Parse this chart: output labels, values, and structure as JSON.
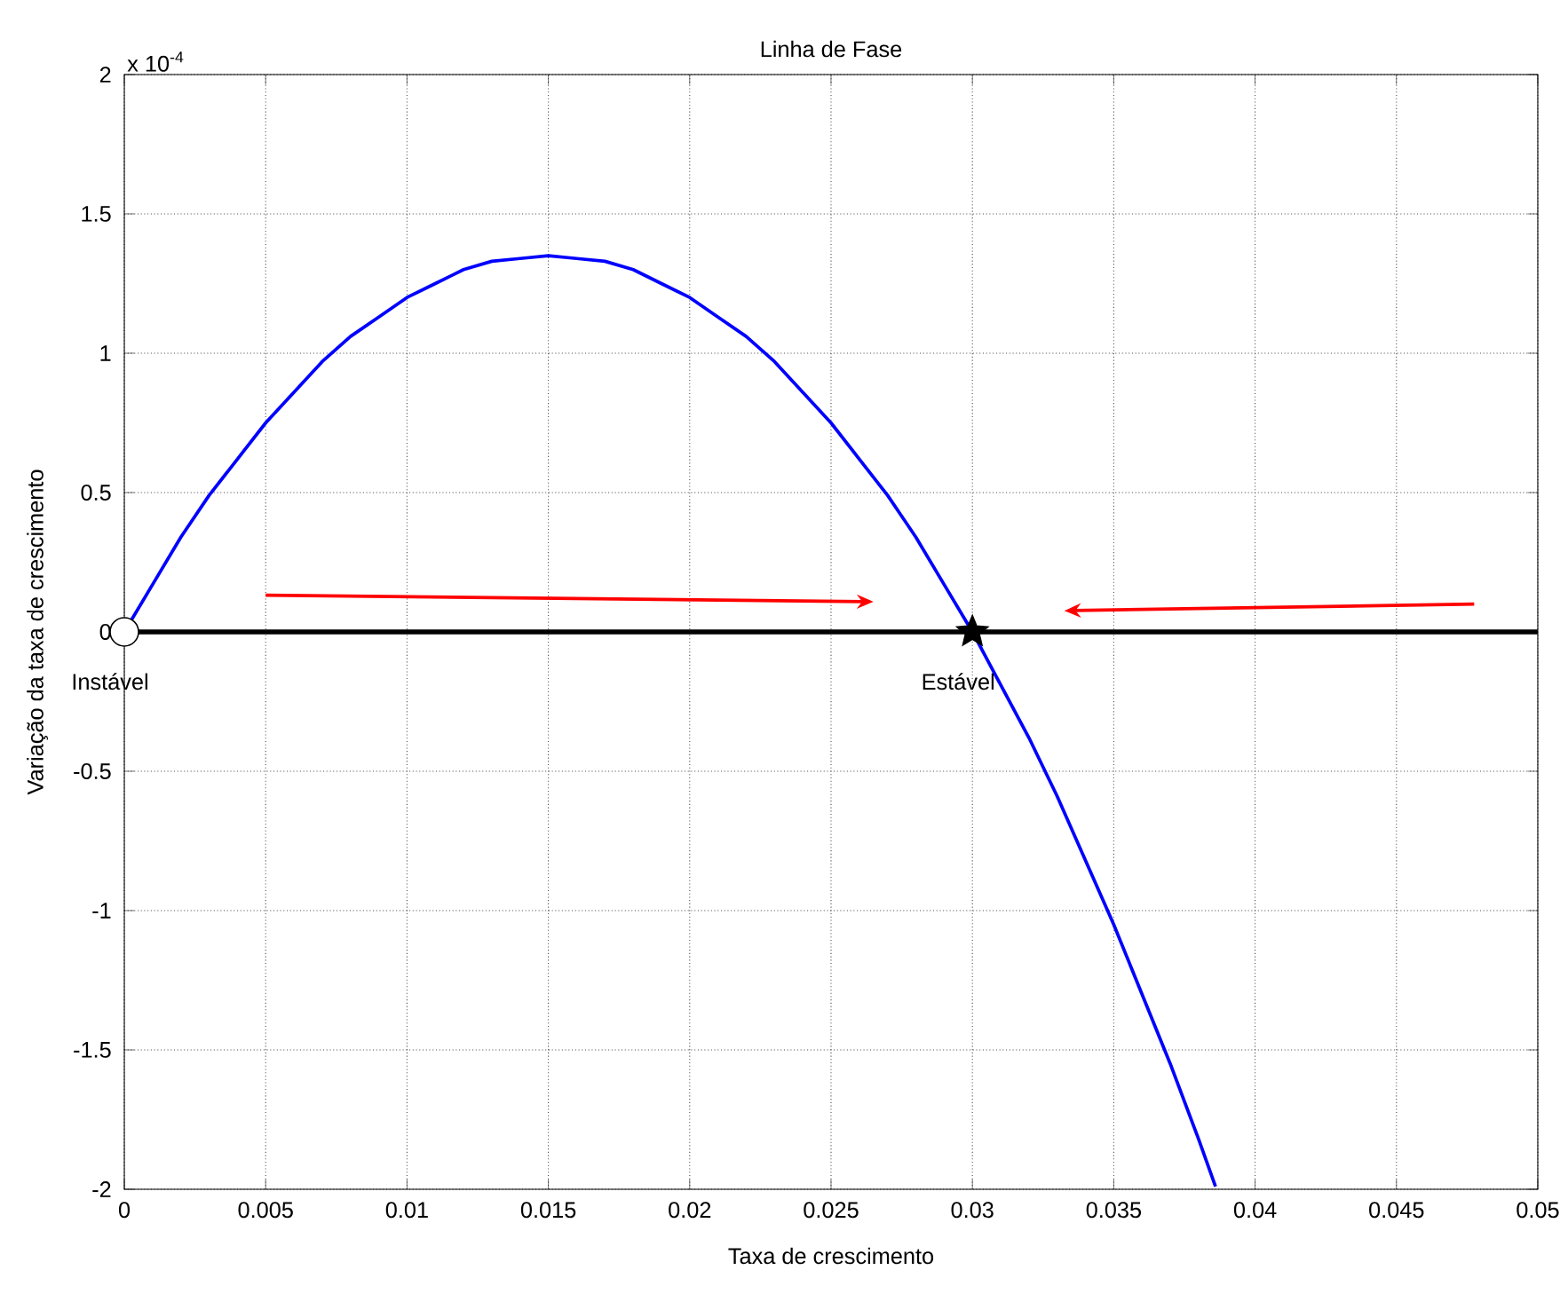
{
  "chart_data": {
    "type": "line",
    "title": "Linha de Fase",
    "xlabel": "Taxa de crescimento",
    "ylabel": "Variação da taxa de crescimento",
    "xlim": [
      0,
      0.05
    ],
    "ylim": [
      -2,
      2
    ],
    "xticks": [
      0,
      0.005,
      0.01,
      0.015,
      0.02,
      0.025,
      0.03,
      0.035,
      0.04,
      0.045,
      0.05
    ],
    "yticks": [
      -2,
      -1.5,
      -1,
      -0.5,
      0,
      0.5,
      1,
      1.5,
      2
    ],
    "grid": true,
    "series": [
      {
        "color": "#0000ff",
        "x": [
          0,
          0.001,
          0.002,
          0.003,
          0.004,
          0.005,
          0.006,
          0.007,
          0.008,
          0.009,
          0.01,
          0.011,
          0.012,
          0.013,
          0.014,
          0.015,
          0.016,
          0.017,
          0.018,
          0.019,
          0.02,
          0.021,
          0.022,
          0.023,
          0.024,
          0.025,
          0.026,
          0.027,
          0.028,
          0.029,
          0.03,
          0.031,
          0.032,
          0.033,
          0.034,
          0.035,
          0.036,
          0.037,
          0.038,
          0.0386
        ],
        "values": [
          0,
          0.17,
          0.34,
          0.49,
          0.62,
          0.75,
          0.86,
          0.97,
          1.06,
          1.13,
          1.2,
          1.25,
          1.3,
          1.33,
          1.34,
          1.35,
          1.34,
          1.33,
          1.3,
          1.25,
          1.2,
          1.13,
          1.06,
          0.97,
          0.86,
          0.75,
          0.62,
          0.49,
          0.34,
          0.17,
          0,
          -0.19,
          -0.38,
          -0.59,
          -0.82,
          -1.05,
          -1.3,
          -1.55,
          -1.82,
          -1.99
        ]
      },
      {
        "type": "scatter",
        "color": "#ffffff",
        "marker": "circle",
        "x": [
          0
        ],
        "values": [
          0
        ]
      },
      {
        "type": "scatter",
        "color": "#000000",
        "marker": "star",
        "x": [
          0.03
        ],
        "values": [
          0
        ]
      }
    ],
    "ref_lines": [
      {
        "axis": "y",
        "value": 0,
        "color": "#000000"
      }
    ],
    "annotations": [
      "x 10$^{-4}$",
      {
        "text": "Instável",
        "x": 0,
        "y": 0
      },
      {
        "text": "Estável",
        "x": 0.03,
        "y": 0
      }
    ]
  }
}
